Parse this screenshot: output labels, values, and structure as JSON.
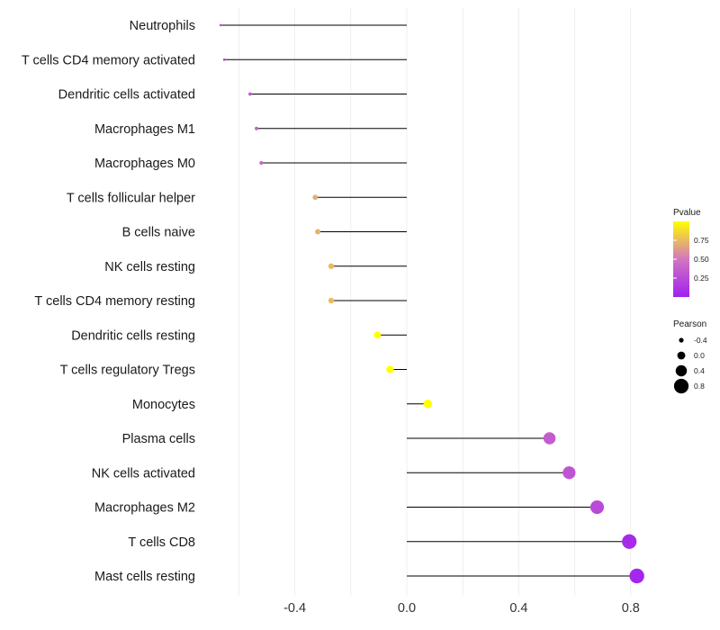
{
  "chart_data": {
    "type": "lollipop",
    "title": "",
    "xlabel": "",
    "ylabel": "",
    "xlim": [
      -0.65,
      0.9
    ],
    "x_ticks": [
      -0.4,
      0.0,
      0.4,
      0.8
    ],
    "x_tick_labels": [
      "-0.4",
      "0.0",
      "0.4",
      "0.8"
    ],
    "grid": true,
    "categories": [
      "Neutrophils",
      "T cells CD4 memory activated",
      "Dendritic cells activated",
      "Macrophages M1",
      "Macrophages M0",
      "T cells follicular helper",
      "B cells naive",
      "NK cells resting",
      "T cells CD4 memory resting",
      "Dendritic cells resting",
      "T cells regulatory  Tregs ",
      "Monocytes",
      "Plasma cells",
      "NK cells activated",
      "Macrophages M2",
      "T cells CD8",
      "Mast cells resting"
    ],
    "pearson": [
      -0.665,
      -0.652,
      -0.56,
      -0.537,
      -0.52,
      -0.327,
      -0.318,
      -0.27,
      -0.27,
      -0.105,
      -0.06,
      0.075,
      0.51,
      0.58,
      0.68,
      0.795,
      0.822
    ],
    "pvalue": [
      0.3,
      0.25,
      0.33,
      0.38,
      0.4,
      0.7,
      0.72,
      0.75,
      0.75,
      1.0,
      1.0,
      1.0,
      0.35,
      0.3,
      0.25,
      0.06,
      0.04
    ],
    "legend_pvalue": {
      "title": "Pvalue",
      "ticks": [
        0.25,
        0.5,
        0.75
      ],
      "tick_labels": [
        "0.25",
        "0.50",
        "0.75"
      ],
      "range": [
        0.0,
        1.0
      ],
      "color_low": "#a020f0",
      "color_mid": "#d276c0",
      "color_high": "#ffff00",
      "position": "right"
    },
    "legend_pearson": {
      "title": "Pearson",
      "values": [
        -0.4,
        0.0,
        0.4,
        0.8
      ],
      "labels": [
        "-0.4",
        "0.0",
        "0.4",
        "0.8"
      ],
      "position": "right"
    }
  }
}
